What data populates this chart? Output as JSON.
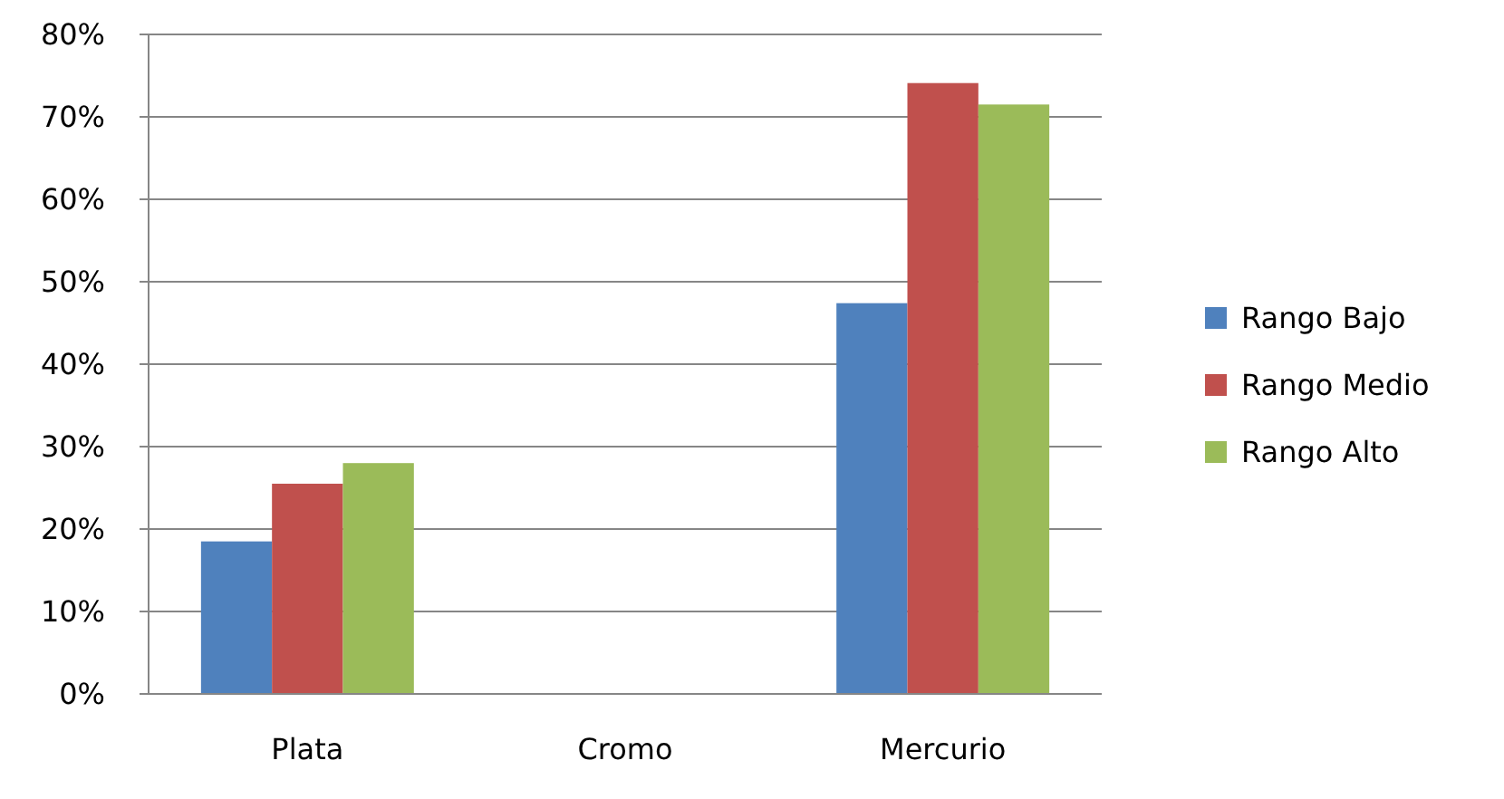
{
  "chart_data": {
    "type": "bar",
    "categories": [
      "Plata",
      "Cromo",
      "Mercurio"
    ],
    "series": [
      {
        "name": "Rango Bajo",
        "color": "#4f81bd",
        "values": [
          18.5,
          0,
          47.4
        ]
      },
      {
        "name": "Rango Medio",
        "color": "#c0504d",
        "values": [
          25.5,
          0,
          74.1
        ]
      },
      {
        "name": "Rango Alto",
        "color": "#9bbb59",
        "values": [
          28,
          0,
          71.5
        ]
      }
    ],
    "ylim": [
      0,
      80
    ],
    "yticks": [
      {
        "value": 0,
        "label": "0%"
      },
      {
        "value": 10,
        "label": "10%"
      },
      {
        "value": 20,
        "label": "20%"
      },
      {
        "value": 30,
        "label": "30%"
      },
      {
        "value": 40,
        "label": "40%"
      },
      {
        "value": 50,
        "label": "50%"
      },
      {
        "value": 60,
        "label": "60%"
      },
      {
        "value": 70,
        "label": "70%"
      },
      {
        "value": 80,
        "label": "80%"
      }
    ],
    "grid": "y",
    "legend": "right"
  }
}
